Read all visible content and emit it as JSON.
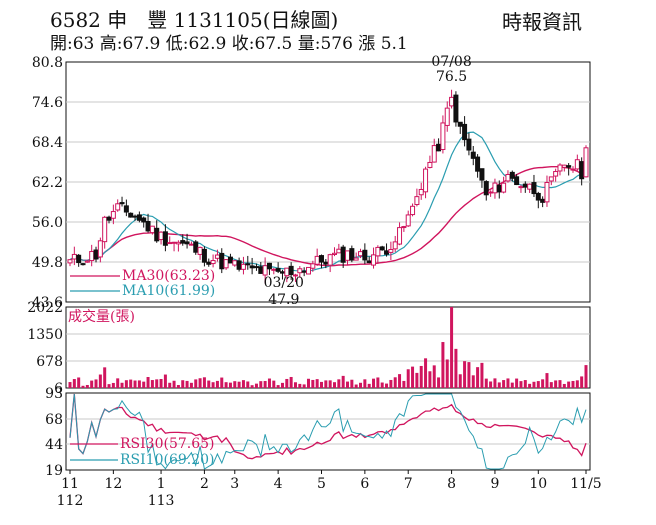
{
  "header": {
    "stock_code": "6582",
    "stock_name": "申　豐",
    "date_label": "1131105(日線圖)",
    "source": "時報資訊",
    "summary": "開:63 高:67.9 低:62.9 收:67.5 量:576 漲 5.1"
  },
  "colors": {
    "up": "#d0155e",
    "down": "#111111",
    "ma30": "#d0155e",
    "ma10": "#2a9db0",
    "volume": "#d0155e",
    "rsi30": "#d0155e",
    "rsi10": "#2a9db0",
    "grid": "#c8c8c8"
  },
  "chart_data": [
    {
      "type": "candlestick",
      "panel": "price",
      "ylim": [
        43.6,
        80.8
      ],
      "y_ticks": [
        "80.8",
        "74.6",
        "68.4",
        "62.2",
        "56.0",
        "49.8",
        "43.6"
      ],
      "y_tick_values": [
        80.8,
        74.6,
        68.4,
        62.2,
        56.0,
        49.8,
        43.6
      ],
      "grid": true,
      "legend": [
        {
          "name": "MA30(63.23)",
          "color": "#d0155e"
        },
        {
          "name": "MA10(61.99)",
          "color": "#2a9db0"
        }
      ],
      "annotations": [
        {
          "label_date": "07/08",
          "label_value": "76.5",
          "x_index": 88,
          "y": 76.5,
          "position": "above"
        },
        {
          "label_date": "03/20",
          "label_value": "47.9",
          "x_index": 47,
          "y": 47.9,
          "position": "below"
        }
      ],
      "last_bar": {
        "open": 63,
        "high": 67.9,
        "low": 62.9,
        "close": 67.5
      }
    },
    {
      "type": "bar",
      "panel": "volume",
      "label": "成交量(張)",
      "ylim": [
        6,
        2022
      ],
      "y_ticks": [
        "2022",
        "1350",
        "678",
        "6"
      ],
      "y_tick_values": [
        2022,
        1350,
        678,
        6
      ],
      "grid": true,
      "peak": {
        "x_index": 88,
        "value": 2022
      },
      "last_value": 576
    },
    {
      "type": "line",
      "panel": "rsi",
      "ylim": [
        19,
        93
      ],
      "y_ticks": [
        "93",
        "68",
        "44",
        "19"
      ],
      "y_tick_values": [
        93,
        68,
        44,
        19
      ],
      "grid": true,
      "legend": [
        {
          "name": "RSI30(57.65)",
          "color": "#d0155e"
        },
        {
          "name": "RSI10(69.20)",
          "color": "#2a9db0"
        }
      ]
    },
    {
      "type": "axis",
      "x_month_ticks": [
        {
          "label": "11",
          "sub": "112",
          "x_index": 0
        },
        {
          "label": "12",
          "sub": "",
          "x_index": 10
        },
        {
          "label": "1",
          "sub": "113",
          "x_index": 21
        },
        {
          "label": "2",
          "sub": "",
          "x_index": 31
        },
        {
          "label": "3",
          "sub": "",
          "x_index": 38
        },
        {
          "label": "4",
          "sub": "",
          "x_index": 48
        },
        {
          "label": "5",
          "sub": "",
          "x_index": 58
        },
        {
          "label": "6",
          "sub": "",
          "x_index": 68
        },
        {
          "label": "7",
          "sub": "",
          "x_index": 78
        },
        {
          "label": "8",
          "sub": "",
          "x_index": 88
        },
        {
          "label": "9",
          "sub": "",
          "x_index": 98
        },
        {
          "label": "10",
          "sub": "",
          "x_index": 108
        },
        {
          "label": "11/5",
          "sub": "",
          "x_index": 119
        }
      ]
    }
  ]
}
